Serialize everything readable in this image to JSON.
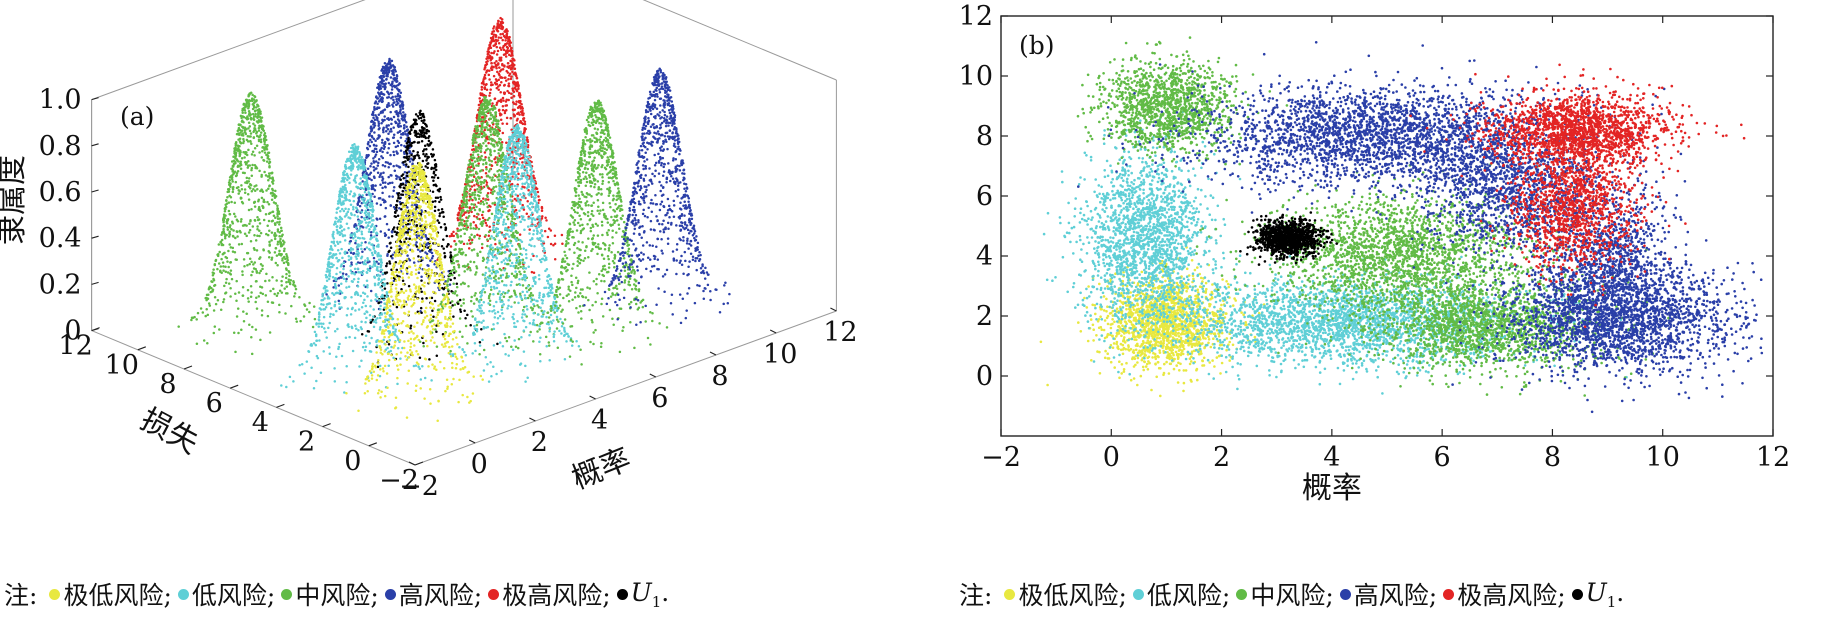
{
  "colors": {
    "very_low": "#e8e840",
    "low": "#5fcfd6",
    "medium": "#61bb46",
    "high": "#2a3fa8",
    "very_high": "#e32424",
    "u1": "#000000",
    "axis": "#222222",
    "box": "#b0b0b0"
  },
  "legend": {
    "prefix": "注:",
    "items": [
      {
        "label": "极低风险;",
        "color": "#e8e840"
      },
      {
        "label": "低风险;",
        "color": "#5fcfd6"
      },
      {
        "label": "中风险;",
        "color": "#61bb46"
      },
      {
        "label": "高风险;",
        "color": "#2a3fa8"
      },
      {
        "label": "极高风险;",
        "color": "#e32424"
      },
      {
        "label": "U",
        "sub": "1",
        "suffix": ".",
        "color": "#000000"
      }
    ]
  },
  "chart_data": [
    {
      "type": "scatter",
      "panel_tag": "(a)",
      "view": "3d",
      "xlabel": "概率",
      "ylabel": "损失",
      "zlabel": "隶属度",
      "xlim": [
        -2,
        12
      ],
      "ylim": [
        -2,
        12
      ],
      "zlim": [
        0,
        1.0
      ],
      "x_ticks": [
        "−2",
        "0",
        "2",
        "4",
        "6",
        "8",
        "10",
        "12"
      ],
      "y_ticks": [
        "−2",
        "0",
        "2",
        "4",
        "6",
        "8",
        "10",
        "12"
      ],
      "z_ticks": [
        "0",
        "0.2",
        "0.4",
        "0.6",
        "0.8",
        "1.0"
      ],
      "membership_peak": 1.0,
      "series": [
        {
          "name": "极低风险",
          "color": "#e8e840",
          "centers": [
            [
              1.0,
              1.8
            ]
          ]
        },
        {
          "name": "低风险",
          "color": "#5fcfd6",
          "centers": [
            [
              0.6,
              4.0
            ],
            [
              4.3,
              1.8
            ]
          ]
        },
        {
          "name": "中风险",
          "color": "#61bb46",
          "centers": [
            [
              1.0,
              9.0
            ],
            [
              5.0,
              4.0
            ],
            [
              6.8,
              1.6
            ]
          ]
        },
        {
          "name": "高风险",
          "color": "#2a3fa8",
          "centers": [
            [
              4.8,
              8.0
            ],
            [
              9.2,
              2.0
            ]
          ]
        },
        {
          "name": "极高风险",
          "color": "#e32424",
          "centers": [
            [
              8.5,
              8.0
            ]
          ]
        },
        {
          "name": "U1",
          "color": "#000000",
          "centers": [
            [
              3.2,
              4.6
            ]
          ]
        }
      ]
    },
    {
      "type": "scatter",
      "panel_tag": "(b)",
      "xlabel": "概率",
      "ylabel": "损失",
      "xlim": [
        -2,
        12
      ],
      "ylim": [
        -2,
        12
      ],
      "x_ticks": [
        "−2",
        "0",
        "2",
        "4",
        "6",
        "8",
        "10",
        "12"
      ],
      "y_ticks": [
        "0",
        "2",
        "4",
        "6",
        "8",
        "10",
        "12"
      ],
      "series": [
        {
          "name": "极低风险",
          "color": "#e8e840",
          "clusters": [
            {
              "x": 1.0,
              "y": 1.8,
              "sx": 0.55,
              "sy": 0.75,
              "n": 1600
            }
          ]
        },
        {
          "name": "低风险",
          "color": "#5fcfd6",
          "clusters": [
            {
              "x": 0.6,
              "y": 4.6,
              "sx": 0.55,
              "sy": 1.4,
              "n": 1800
            },
            {
              "x": 4.3,
              "y": 1.8,
              "sx": 1.6,
              "sy": 0.7,
              "n": 2600
            }
          ]
        },
        {
          "name": "中风险",
          "color": "#61bb46",
          "clusters": [
            {
              "x": 1.0,
              "y": 9.0,
              "sx": 0.6,
              "sy": 0.7,
              "n": 1300
            },
            {
              "x": 5.2,
              "y": 4.0,
              "sx": 1.2,
              "sy": 1.0,
              "n": 2000
            },
            {
              "x": 6.8,
              "y": 1.6,
              "sx": 1.0,
              "sy": 0.7,
              "n": 1600
            }
          ]
        },
        {
          "name": "高风险",
          "color": "#2a3fa8",
          "clusters": [
            {
              "x": 4.8,
              "y": 8.0,
              "sx": 1.6,
              "sy": 0.8,
              "n": 2600
            },
            {
              "x": 7.2,
              "y": 6.2,
              "sx": 0.8,
              "sy": 1.0,
              "n": 1200
            },
            {
              "x": 9.2,
              "y": 1.9,
              "sx": 1.0,
              "sy": 0.9,
              "n": 2200
            },
            {
              "x": 9.0,
              "y": 4.0,
              "sx": 0.6,
              "sy": 1.2,
              "n": 900
            }
          ]
        },
        {
          "name": "极高风险",
          "color": "#e32424",
          "clusters": [
            {
              "x": 8.5,
              "y": 8.2,
              "sx": 0.8,
              "sy": 0.6,
              "n": 1700
            },
            {
              "x": 8.4,
              "y": 5.6,
              "sx": 0.55,
              "sy": 1.0,
              "n": 1200
            }
          ]
        },
        {
          "name": "U1",
          "color": "#000000",
          "clusters": [
            {
              "x": 3.2,
              "y": 4.6,
              "sx": 0.28,
              "sy": 0.28,
              "n": 1100
            }
          ]
        }
      ]
    }
  ]
}
